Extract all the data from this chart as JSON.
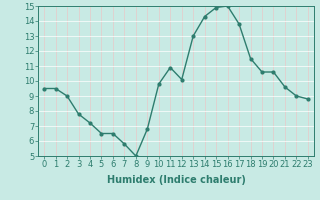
{
  "x": [
    0,
    1,
    2,
    3,
    4,
    5,
    6,
    7,
    8,
    9,
    10,
    11,
    12,
    13,
    14,
    15,
    16,
    17,
    18,
    19,
    20,
    21,
    22,
    23
  ],
  "y": [
    9.5,
    9.5,
    9.0,
    7.8,
    7.2,
    6.5,
    6.5,
    5.8,
    5.0,
    6.8,
    9.8,
    10.9,
    10.1,
    13.0,
    14.3,
    14.9,
    15.0,
    13.8,
    11.5,
    10.6,
    10.6,
    9.6,
    9.0,
    8.8
  ],
  "line_color": "#2e7d6e",
  "marker": "o",
  "marker_size": 2.0,
  "line_width": 1.0,
  "xlabel": "Humidex (Indice chaleur)",
  "xlim": [
    -0.5,
    23.5
  ],
  "ylim": [
    5,
    15
  ],
  "yticks": [
    5,
    6,
    7,
    8,
    9,
    10,
    11,
    12,
    13,
    14,
    15
  ],
  "xticks": [
    0,
    1,
    2,
    3,
    4,
    5,
    6,
    7,
    8,
    9,
    10,
    11,
    12,
    13,
    14,
    15,
    16,
    17,
    18,
    19,
    20,
    21,
    22,
    23
  ],
  "xtick_labels": [
    "0",
    "1",
    "2",
    "3",
    "4",
    "5",
    "6",
    "7",
    "8",
    "9",
    "10",
    "11",
    "12",
    "13",
    "14",
    "15",
    "16",
    "17",
    "18",
    "19",
    "20",
    "21",
    "22",
    "23"
  ],
  "background_color": "#c8eae4",
  "grid_color_major": "#e8c8c8",
  "grid_color_minor": "#ffffff",
  "axis_color": "#2e7d6e",
  "tick_color": "#2e7d6e",
  "xlabel_fontsize": 7,
  "tick_fontsize": 6
}
